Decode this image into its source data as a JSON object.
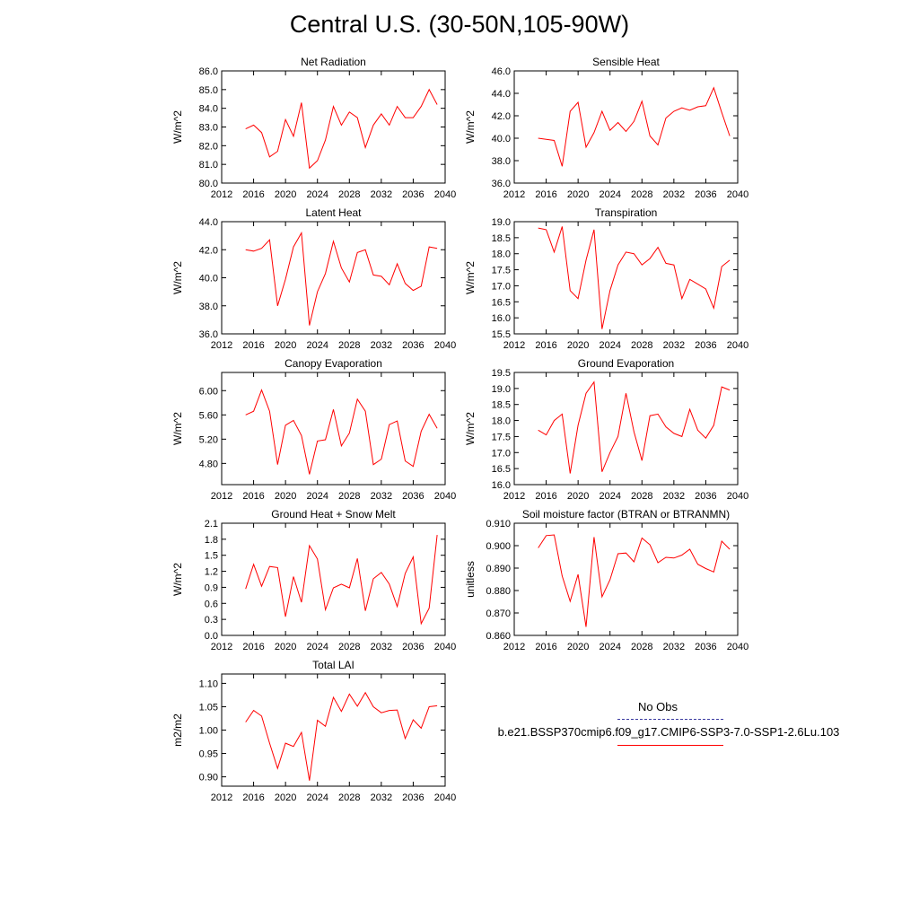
{
  "title": "Central U.S. (30-50N,105-90W)",
  "colors": {
    "series": "#ff0000",
    "obs": "#3a3aa0",
    "axis": "#000000"
  },
  "legend": {
    "obs_label": "No Obs",
    "model_label": "b.e21.BSSP370cmip6.f09_g17.CMIP6-SSP3-7.0-SSP1-2.6Lu.103"
  },
  "chart_data": [
    {
      "type": "line",
      "title": "Net Radiation",
      "ylabel": "W/m^2",
      "xlim": [
        2012,
        2040
      ],
      "xticks": [
        "2012",
        "2016",
        "2020",
        "2024",
        "2028",
        "2032",
        "2036",
        "2040"
      ],
      "ylim": [
        80.0,
        86.0
      ],
      "yticks": [
        "80.0",
        "81.0",
        "82.0",
        "83.0",
        "84.0",
        "85.0",
        "86.0"
      ],
      "x": [
        2015,
        2016,
        2017,
        2018,
        2019,
        2020,
        2021,
        2022,
        2023,
        2024,
        2025,
        2026,
        2027,
        2028,
        2029,
        2030,
        2031,
        2032,
        2033,
        2034,
        2035,
        2036,
        2037,
        2038,
        2039
      ],
      "values": [
        82.9,
        83.1,
        82.7,
        81.4,
        81.7,
        83.4,
        82.5,
        84.3,
        80.8,
        81.2,
        82.3,
        84.1,
        83.1,
        83.8,
        83.5,
        81.9,
        83.1,
        83.7,
        83.1,
        84.1,
        83.5,
        83.5,
        84.1,
        85.0,
        84.2
      ]
    },
    {
      "type": "line",
      "title": "Sensible Heat",
      "ylabel": "W/m^2",
      "xlim": [
        2012,
        2040
      ],
      "xticks": [
        "2012",
        "2016",
        "2020",
        "2024",
        "2028",
        "2032",
        "2036",
        "2040"
      ],
      "ylim": [
        36.0,
        46.0
      ],
      "yticks": [
        "36.0",
        "38.0",
        "40.0",
        "42.0",
        "44.0",
        "46.0"
      ],
      "x": [
        2015,
        2016,
        2017,
        2018,
        2019,
        2020,
        2021,
        2022,
        2023,
        2024,
        2025,
        2026,
        2027,
        2028,
        2029,
        2030,
        2031,
        2032,
        2033,
        2034,
        2035,
        2036,
        2037,
        2038,
        2039
      ],
      "values": [
        40.0,
        39.9,
        39.8,
        37.5,
        42.4,
        43.2,
        39.2,
        40.5,
        42.4,
        40.7,
        41.4,
        40.6,
        41.5,
        43.3,
        40.2,
        39.4,
        41.8,
        42.4,
        42.7,
        42.5,
        42.8,
        42.9,
        44.5,
        42.3,
        40.2
      ]
    },
    {
      "type": "line",
      "title": "Latent Heat",
      "ylabel": "W/m^2",
      "xlim": [
        2012,
        2040
      ],
      "xticks": [
        "2012",
        "2016",
        "2020",
        "2024",
        "2028",
        "2032",
        "2036",
        "2040"
      ],
      "ylim": [
        36.0,
        44.0
      ],
      "yticks": [
        "36.0",
        "38.0",
        "40.0",
        "42.0",
        "44.0"
      ],
      "x": [
        2015,
        2016,
        2017,
        2018,
        2019,
        2020,
        2021,
        2022,
        2023,
        2024,
        2025,
        2026,
        2027,
        2028,
        2029,
        2030,
        2031,
        2032,
        2033,
        2034,
        2035,
        2036,
        2037,
        2038,
        2039
      ],
      "values": [
        42.0,
        41.9,
        42.1,
        42.7,
        38.0,
        39.9,
        42.2,
        43.2,
        36.6,
        39.0,
        40.3,
        42.6,
        40.7,
        39.7,
        41.8,
        42.0,
        40.2,
        40.1,
        39.5,
        41.0,
        39.6,
        39.1,
        39.4,
        42.2,
        42.1
      ]
    },
    {
      "type": "line",
      "title": "Transpiration",
      "ylabel": "W/m^2",
      "xlim": [
        2012,
        2040
      ],
      "xticks": [
        "2012",
        "2016",
        "2020",
        "2024",
        "2028",
        "2032",
        "2036",
        "2040"
      ],
      "ylim": [
        15.5,
        19.0
      ],
      "yticks": [
        "15.5",
        "16.0",
        "16.5",
        "17.0",
        "17.5",
        "18.0",
        "18.5",
        "19.0"
      ],
      "x": [
        2015,
        2016,
        2017,
        2018,
        2019,
        2020,
        2021,
        2022,
        2023,
        2024,
        2025,
        2026,
        2027,
        2028,
        2029,
        2030,
        2031,
        2032,
        2033,
        2034,
        2035,
        2036,
        2037,
        2038,
        2039
      ],
      "values": [
        18.8,
        18.75,
        18.05,
        18.85,
        16.85,
        16.6,
        17.8,
        18.75,
        15.65,
        16.85,
        17.65,
        18.05,
        18.0,
        17.65,
        17.85,
        18.2,
        17.7,
        17.65,
        16.6,
        17.2,
        17.05,
        16.9,
        16.3,
        17.6,
        17.8
      ]
    },
    {
      "type": "line",
      "title": "Canopy Evaporation",
      "ylabel": "W/m^2",
      "xlim": [
        2012,
        2040
      ],
      "xticks": [
        "2012",
        "2016",
        "2020",
        "2024",
        "2028",
        "2032",
        "2036",
        "2040"
      ],
      "ylim": [
        4.45,
        6.3
      ],
      "yticks": [
        "4.80",
        "5.20",
        "5.60",
        "6.00"
      ],
      "ytick_values": [
        4.8,
        5.2,
        5.6,
        6.0
      ],
      "x": [
        2015,
        2016,
        2017,
        2018,
        2019,
        2020,
        2021,
        2022,
        2023,
        2024,
        2025,
        2026,
        2027,
        2028,
        2029,
        2030,
        2031,
        2032,
        2033,
        2034,
        2035,
        2036,
        2037,
        2038,
        2039
      ],
      "values": [
        5.6,
        5.66,
        6.01,
        5.66,
        4.78,
        5.43,
        5.51,
        5.26,
        4.62,
        5.17,
        5.19,
        5.69,
        5.09,
        5.3,
        5.86,
        5.66,
        4.78,
        4.87,
        5.44,
        5.5,
        4.84,
        4.75,
        5.33,
        5.61,
        5.38
      ]
    },
    {
      "type": "line",
      "title": "Ground Evaporation",
      "ylabel": "W/m^2",
      "xlim": [
        2012,
        2040
      ],
      "xticks": [
        "2012",
        "2016",
        "2020",
        "2024",
        "2028",
        "2032",
        "2036",
        "2040"
      ],
      "ylim": [
        16.0,
        19.5
      ],
      "yticks": [
        "16.0",
        "16.5",
        "17.0",
        "17.5",
        "18.0",
        "18.5",
        "19.0",
        "19.5"
      ],
      "x": [
        2015,
        2016,
        2017,
        2018,
        2019,
        2020,
        2021,
        2022,
        2023,
        2024,
        2025,
        2026,
        2027,
        2028,
        2029,
        2030,
        2031,
        2032,
        2033,
        2034,
        2035,
        2036,
        2037,
        2038,
        2039
      ],
      "values": [
        17.7,
        17.55,
        18.0,
        18.2,
        16.35,
        17.85,
        18.85,
        19.2,
        16.4,
        17.0,
        17.5,
        18.85,
        17.65,
        16.75,
        18.15,
        18.2,
        17.8,
        17.6,
        17.5,
        18.35,
        17.7,
        17.45,
        17.85,
        19.05,
        18.95
      ]
    },
    {
      "type": "line",
      "title": "Ground Heat + Snow Melt",
      "ylabel": "W/m^2",
      "xlim": [
        2012,
        2040
      ],
      "xticks": [
        "2012",
        "2016",
        "2020",
        "2024",
        "2028",
        "2032",
        "2036",
        "2040"
      ],
      "ylim": [
        0.0,
        2.1
      ],
      "yticks": [
        "0.0",
        "0.3",
        "0.6",
        "0.9",
        "1.2",
        "1.5",
        "1.8",
        "2.1"
      ],
      "x": [
        2015,
        2016,
        2017,
        2018,
        2019,
        2020,
        2021,
        2022,
        2023,
        2024,
        2025,
        2026,
        2027,
        2028,
        2029,
        2030,
        2031,
        2032,
        2033,
        2034,
        2035,
        2036,
        2037,
        2038,
        2039
      ],
      "values": [
        0.87,
        1.33,
        0.92,
        1.29,
        1.27,
        0.35,
        1.1,
        0.62,
        1.68,
        1.43,
        0.48,
        0.89,
        0.96,
        0.89,
        1.44,
        0.46,
        1.06,
        1.18,
        0.96,
        0.54,
        1.16,
        1.47,
        0.22,
        0.51,
        1.88
      ]
    },
    {
      "type": "line",
      "title": "Soil moisture factor (BTRAN or BTRANMN)",
      "ylabel": "unitless",
      "xlim": [
        2012,
        2040
      ],
      "xticks": [
        "2012",
        "2016",
        "2020",
        "2024",
        "2028",
        "2032",
        "2036",
        "2040"
      ],
      "ylim": [
        0.86,
        0.91
      ],
      "yticks": [
        "0.860",
        "0.870",
        "0.880",
        "0.890",
        "0.900",
        "0.910"
      ],
      "x": [
        2015,
        2016,
        2017,
        2018,
        2019,
        2020,
        2021,
        2022,
        2023,
        2024,
        2025,
        2026,
        2027,
        2028,
        2029,
        2030,
        2031,
        2032,
        2033,
        2034,
        2035,
        2036,
        2037,
        2038,
        2039
      ],
      "values": [
        0.899,
        0.9045,
        0.9048,
        0.8865,
        0.8752,
        0.8872,
        0.8638,
        0.9038,
        0.8772,
        0.8848,
        0.8964,
        0.8967,
        0.8928,
        0.9034,
        0.9004,
        0.8924,
        0.8948,
        0.8945,
        0.8958,
        0.8984,
        0.8917,
        0.8898,
        0.8883,
        0.902,
        0.8984
      ]
    },
    {
      "type": "line",
      "title": "Total LAI",
      "ylabel": "m2/m2",
      "xlim": [
        2012,
        2040
      ],
      "xticks": [
        "2012",
        "2016",
        "2020",
        "2024",
        "2028",
        "2032",
        "2036",
        "2040"
      ],
      "ylim": [
        0.88,
        1.12
      ],
      "yticks": [
        "0.90",
        "0.95",
        "1.00",
        "1.05",
        "1.10"
      ],
      "ytick_values": [
        0.9,
        0.95,
        1.0,
        1.05,
        1.1
      ],
      "x": [
        2015,
        2016,
        2017,
        2018,
        2019,
        2020,
        2021,
        2022,
        2023,
        2024,
        2025,
        2026,
        2027,
        2028,
        2029,
        2030,
        2031,
        2032,
        2033,
        2034,
        2035,
        2036,
        2037,
        2038,
        2039
      ],
      "values": [
        1.017,
        1.042,
        1.03,
        0.972,
        0.918,
        0.972,
        0.965,
        0.995,
        0.892,
        1.021,
        1.008,
        1.07,
        1.04,
        1.077,
        1.051,
        1.08,
        1.05,
        1.037,
        1.042,
        1.043,
        0.982,
        1.022,
        1.004,
        1.05,
        1.052
      ]
    }
  ]
}
